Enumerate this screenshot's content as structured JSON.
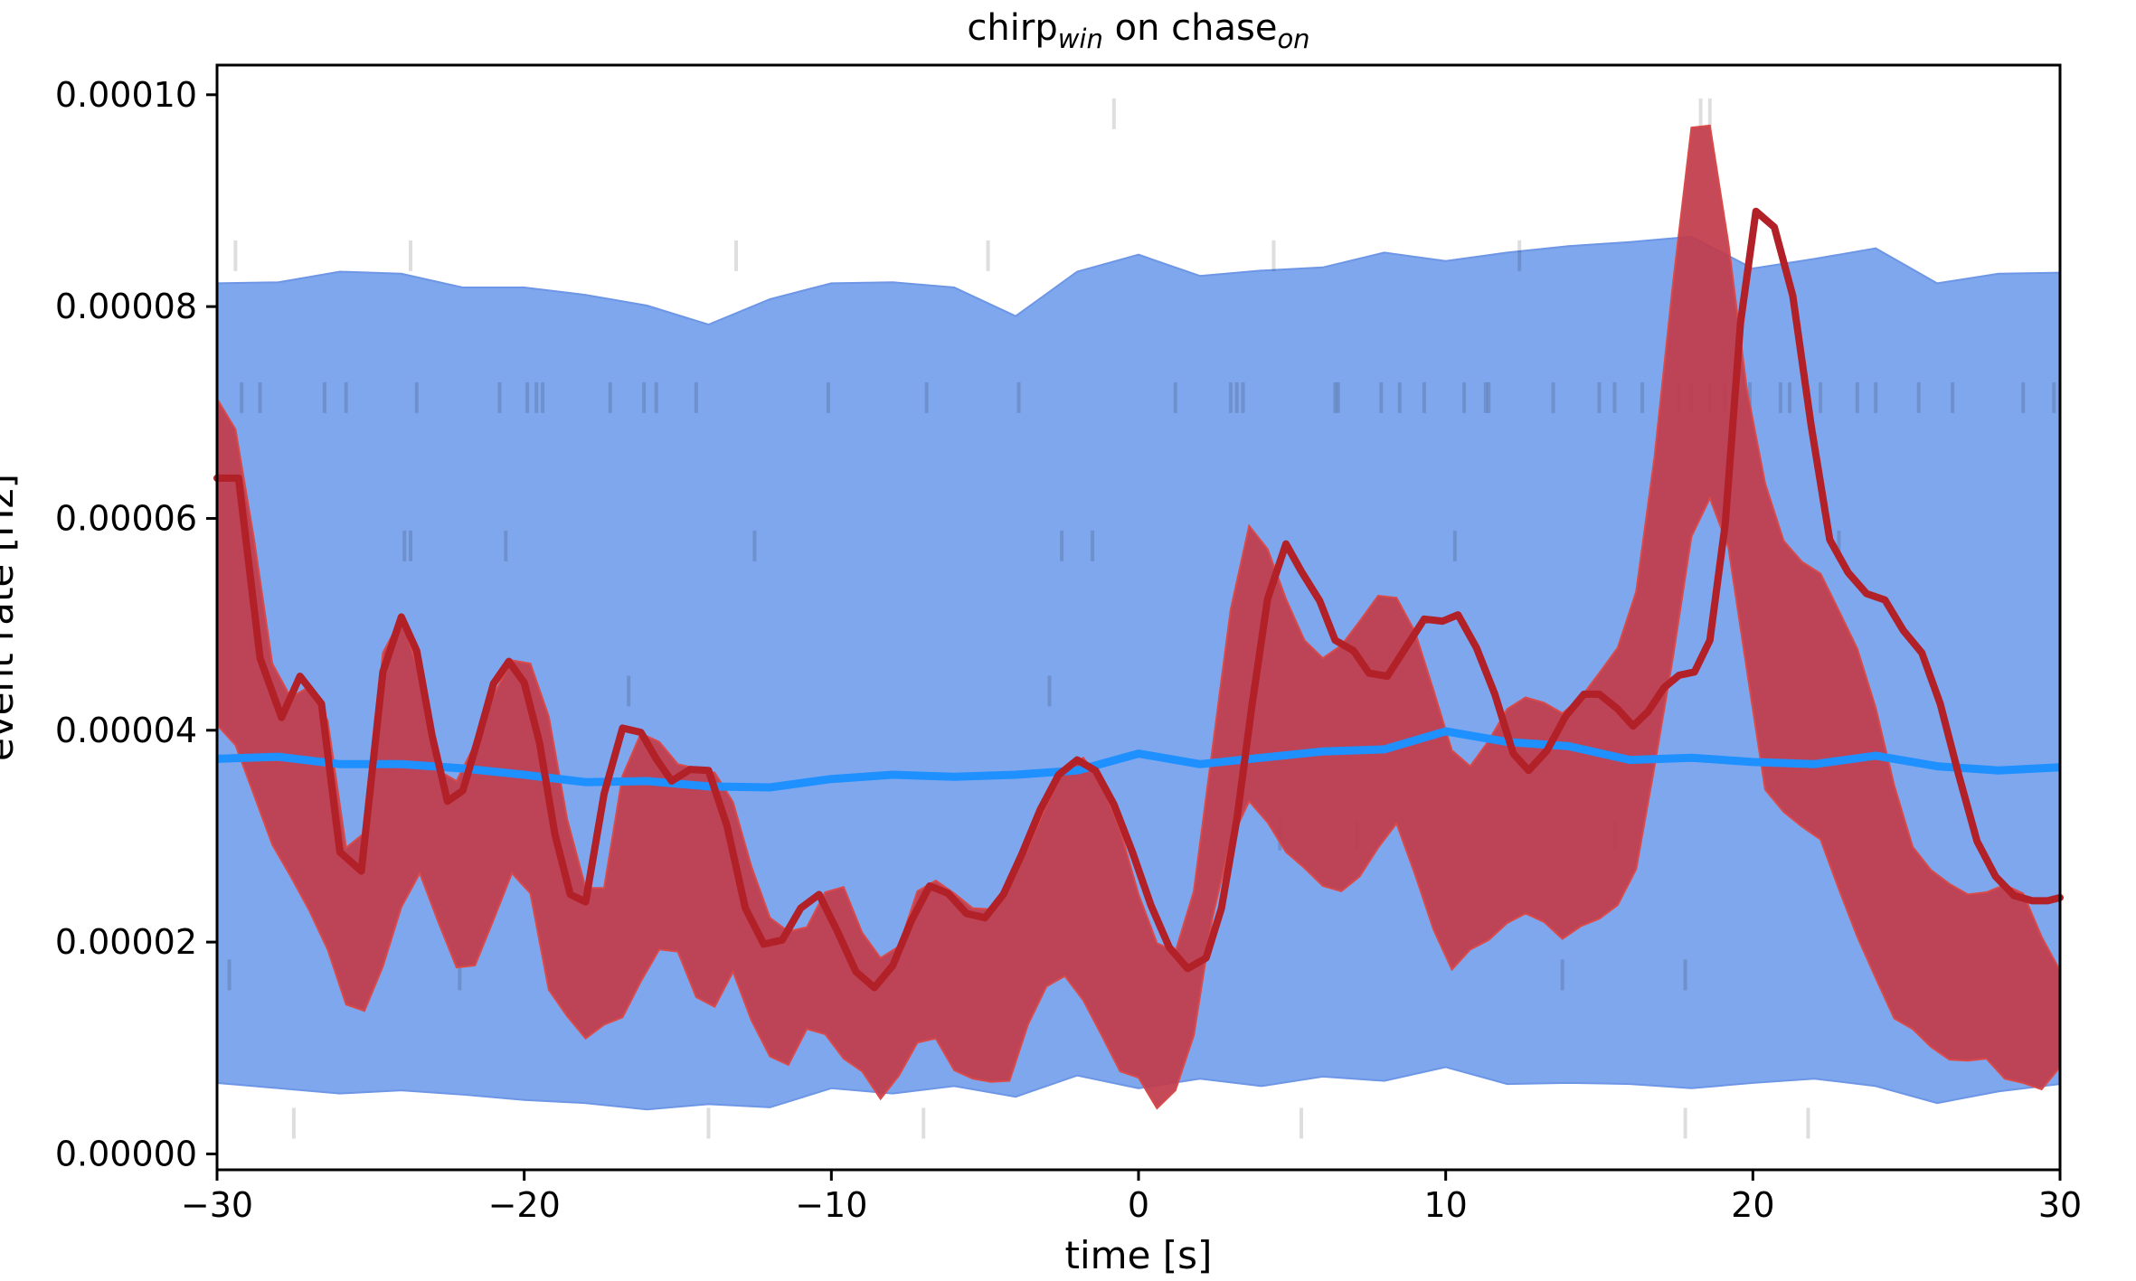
{
  "chart_data": {
    "type": "line",
    "title_main": "chirp",
    "title_sub1": "win",
    "title_mid": " on chase",
    "title_sub2": "on",
    "xlabel": "time [s]",
    "ylabel": "event rate [Hz]",
    "xlim": [
      -30,
      30
    ],
    "ylim": [
      -1.5e-06,
      0.0001028
    ],
    "x_ticks": [
      -30,
      -20,
      -10,
      0,
      10,
      20,
      30
    ],
    "x_tick_labels": [
      "−30",
      "−20",
      "−10",
      "0",
      "10",
      "20",
      "30"
    ],
    "y_ticks": [
      0,
      2e-05,
      4e-05,
      6e-05,
      8e-05,
      0.0001
    ],
    "y_tick_labels": [
      "0.00000",
      "0.00002",
      "0.00004",
      "0.00006",
      "0.00008",
      "0.00010"
    ],
    "grid": false,
    "colors": {
      "shuffled_band": "#7fa7ed",
      "shuffled_band_edge": "#6d96e6",
      "shuffled_median": "#1e90ff",
      "observed_band": "#c23b4b",
      "observed_band_edge": "#d94a4a",
      "observed_line": "#b22028",
      "event_ticks": "#000000"
    },
    "series": [
      {
        "role": "shuffled_median",
        "x": [
          -30,
          -28,
          -26,
          -24,
          -22,
          -20,
          -18,
          -16,
          -14,
          -12,
          -10,
          -8,
          -6,
          -4,
          -2,
          0,
          2,
          4,
          6,
          8,
          10,
          12,
          14,
          16,
          18,
          20,
          22,
          24,
          26,
          28,
          30
        ],
        "values": [
          3.73e-05,
          3.75e-05,
          3.68e-05,
          3.68e-05,
          3.64e-05,
          3.58e-05,
          3.51e-05,
          3.52e-05,
          3.47e-05,
          3.46e-05,
          3.54e-05,
          3.58e-05,
          3.56e-05,
          3.58e-05,
          3.62e-05,
          3.78e-05,
          3.68e-05,
          3.74e-05,
          3.8e-05,
          3.82e-05,
          3.99e-05,
          3.89e-05,
          3.85e-05,
          3.72e-05,
          3.74e-05,
          3.7e-05,
          3.68e-05,
          3.76e-05,
          3.66e-05,
          3.62e-05,
          3.65e-05
        ]
      },
      {
        "role": "shuffled_band",
        "x": [
          -30,
          -28,
          -26,
          -24,
          -22,
          -20,
          -18,
          -16,
          -14,
          -12,
          -10,
          -8,
          -6,
          -4,
          -2,
          0,
          2,
          4,
          6,
          8,
          10,
          12,
          14,
          16,
          18,
          20,
          22,
          24,
          26,
          28,
          30
        ],
        "lower": [
          6.7e-06,
          6.2e-06,
          5.7e-06,
          6e-06,
          5.6e-06,
          5.1e-06,
          4.8e-06,
          4.2e-06,
          4.7e-06,
          4.4e-06,
          6.2e-06,
          5.7e-06,
          6.4e-06,
          5.4e-06,
          7.4e-06,
          6.2e-06,
          7.1e-06,
          6.4e-06,
          7.3e-06,
          6.9e-06,
          8.2e-06,
          6.6e-06,
          6.7e-06,
          6.6e-06,
          6.2e-06,
          6.7e-06,
          7.1e-06,
          6.4e-06,
          4.8e-06,
          5.9e-06,
          6.6e-06
        ],
        "upper": [
          8.22e-05,
          8.23e-05,
          8.33e-05,
          8.31e-05,
          8.18e-05,
          8.18e-05,
          8.11e-05,
          8.01e-05,
          7.83e-05,
          8.07e-05,
          8.22e-05,
          8.23e-05,
          8.18e-05,
          7.91e-05,
          8.33e-05,
          8.49e-05,
          8.29e-05,
          8.34e-05,
          8.37e-05,
          8.51e-05,
          8.43e-05,
          8.51e-05,
          8.57e-05,
          8.61e-05,
          8.66e-05,
          8.36e-05,
          8.45e-05,
          8.55e-05,
          8.22e-05,
          8.31e-05,
          8.32e-05
        ]
      },
      {
        "role": "observed",
        "x": [
          -30,
          -29.3,
          -28.6,
          -27.9,
          -27.3,
          -26.6,
          -26,
          -25.3,
          -24.6,
          -24,
          -23.5,
          -23,
          -22.5,
          -22,
          -21.5,
          -21,
          -20.5,
          -20,
          -19.5,
          -19,
          -18.5,
          -18,
          -17.4,
          -16.8,
          -16.2,
          -15.7,
          -15.2,
          -14.6,
          -14,
          -13.4,
          -12.8,
          -12.2,
          -11.6,
          -11,
          -10.4,
          -9.8,
          -9.2,
          -8.6,
          -8,
          -7.4,
          -6.8,
          -6.2,
          -5.6,
          -5,
          -4.4,
          -3.8,
          -3.2,
          -2.6,
          -2,
          -1.4,
          -0.8,
          -0.2,
          0.4,
          1,
          1.6,
          2.2,
          2.7,
          3.2,
          3.7,
          4.2,
          4.8,
          5.3,
          5.9,
          6.4,
          7,
          7.5,
          8.1,
          8.7,
          9.3,
          9.9,
          10.4,
          11,
          11.6,
          12.2,
          12.7,
          13.3,
          13.9,
          14.5,
          15,
          15.6,
          16.1,
          16.6,
          17.1,
          17.6,
          18.1,
          18.6,
          19.1,
          19.6,
          20.1,
          20.7,
          21.3,
          21.9,
          22.5,
          23.1,
          23.7,
          24.3,
          24.9,
          25.5,
          26.1,
          26.7,
          27.3,
          27.9,
          28.5,
          29.1,
          29.6,
          30
        ],
        "values": [
          6.38e-05,
          6.38e-05,
          4.68e-05,
          4.12e-05,
          4.51e-05,
          4.25e-05,
          2.85e-05,
          2.67e-05,
          4.55e-05,
          5.07e-05,
          4.75e-05,
          3.95e-05,
          3.33e-05,
          3.43e-05,
          3.92e-05,
          4.44e-05,
          4.65e-05,
          4.45e-05,
          3.88e-05,
          3.02e-05,
          2.45e-05,
          2.38e-05,
          3.4e-05,
          4.02e-05,
          3.98e-05,
          3.73e-05,
          3.52e-05,
          3.63e-05,
          3.62e-05,
          3.1e-05,
          2.32e-05,
          1.98e-05,
          2.02e-05,
          2.32e-05,
          2.45e-05,
          2.1e-05,
          1.72e-05,
          1.57e-05,
          1.78e-05,
          2.2e-05,
          2.53e-05,
          2.46e-05,
          2.27e-05,
          2.23e-05,
          2.45e-05,
          2.83e-05,
          3.25e-05,
          3.58e-05,
          3.72e-05,
          3.62e-05,
          3.3e-05,
          2.85e-05,
          2.35e-05,
          1.95e-05,
          1.75e-05,
          1.85e-05,
          2.32e-05,
          3.16e-05,
          4.25e-05,
          5.24e-05,
          5.76e-05,
          5.5e-05,
          5.22e-05,
          4.85e-05,
          4.75e-05,
          4.54e-05,
          4.51e-05,
          4.78e-05,
          5.05e-05,
          5.03e-05,
          5.09e-05,
          4.78e-05,
          4.34e-05,
          3.78e-05,
          3.62e-05,
          3.81e-05,
          4.13e-05,
          4.34e-05,
          4.34e-05,
          4.2e-05,
          4.04e-05,
          4.18e-05,
          4.4e-05,
          4.52e-05,
          4.55e-05,
          4.85e-05,
          5.95e-05,
          7.85e-05,
          8.9e-05,
          8.75e-05,
          8.1e-05,
          6.87e-05,
          5.8e-05,
          5.49e-05,
          5.29e-05,
          5.23e-05,
          4.94e-05,
          4.73e-05,
          4.25e-05,
          3.58e-05,
          2.95e-05,
          2.62e-05,
          2.44e-05,
          2.39e-05,
          2.39e-05,
          2.42e-05
        ]
      },
      {
        "role": "observed_band",
        "x": [
          -30,
          -29.4,
          -28.8,
          -28.2,
          -27.6,
          -27,
          -26.4,
          -25.8,
          -25.2,
          -24.6,
          -24,
          -23.4,
          -22.8,
          -22.2,
          -21.6,
          -21,
          -20.4,
          -19.8,
          -19.2,
          -18.6,
          -18,
          -17.4,
          -16.8,
          -16.2,
          -15.6,
          -15,
          -14.4,
          -13.8,
          -13.2,
          -12.6,
          -12,
          -11.4,
          -10.8,
          -10.2,
          -9.6,
          -9,
          -8.4,
          -7.8,
          -7.2,
          -6.6,
          -6,
          -5.4,
          -4.8,
          -4.2,
          -3.6,
          -3,
          -2.4,
          -1.8,
          -1.2,
          -0.6,
          0,
          0.6,
          1.2,
          1.8,
          2.4,
          3,
          3.6,
          4.2,
          4.8,
          5.4,
          6,
          6.6,
          7.2,
          7.8,
          8.4,
          9,
          9.6,
          10.2,
          10.8,
          11.4,
          12,
          12.6,
          13.2,
          13.8,
          14.4,
          15,
          15.6,
          16.2,
          16.8,
          17.4,
          18,
          18.6,
          19.2,
          19.8,
          20.4,
          21,
          21.6,
          22.2,
          22.8,
          23.4,
          24,
          24.6,
          25.2,
          25.8,
          26.4,
          27,
          27.6,
          28.2,
          28.8,
          29.4,
          30
        ],
        "lower": [
          4.05e-05,
          3.86e-05,
          3.39e-05,
          2.92e-05,
          2.62e-05,
          2.3e-05,
          1.93e-05,
          1.41e-05,
          1.35e-05,
          1.77e-05,
          2.33e-05,
          2.65e-05,
          2.19e-05,
          1.76e-05,
          1.78e-05,
          2.21e-05,
          2.65e-05,
          2.46e-05,
          1.55e-05,
          1.3e-05,
          1.09e-05,
          1.22e-05,
          1.29e-05,
          1.63e-05,
          1.93e-05,
          1.91e-05,
          1.48e-05,
          1.39e-05,
          1.72e-05,
          1.26e-05,
          9.2e-06,
          8.4e-06,
          1.18e-05,
          1.13e-05,
          9e-06,
          7.8e-06,
          5.2e-06,
          7.4e-06,
          1.05e-05,
          1.09e-05,
          7.9e-06,
          7.1e-06,
          6.8e-06,
          6.9e-06,
          1.22e-05,
          1.58e-05,
          1.68e-05,
          1.45e-05,
          1.12e-05,
          7.8e-06,
          7.2e-06,
          4.3e-06,
          6e-06,
          1.12e-05,
          2.22e-05,
          2.96e-05,
          3.33e-05,
          3.13e-05,
          2.85e-05,
          2.7e-05,
          2.53e-05,
          2.48e-05,
          2.62e-05,
          2.89e-05,
          3.12e-05,
          2.64e-05,
          2.12e-05,
          1.74e-05,
          1.93e-05,
          2.02e-05,
          2.18e-05,
          2.27e-05,
          2.19e-05,
          2.03e-05,
          2.15e-05,
          2.22e-05,
          2.35e-05,
          2.69e-05,
          3.66e-05,
          4.69e-05,
          5.83e-05,
          6.19e-05,
          5.73e-05,
          4.58e-05,
          3.44e-05,
          3.23e-05,
          3.09e-05,
          2.97e-05,
          2.5e-05,
          2.05e-05,
          1.66e-05,
          1.28e-05,
          1.18e-05,
          1.01e-05,
          8.9e-06,
          8.8e-06,
          9e-06,
          7.1e-06,
          6.7e-06,
          6.1e-06,
          8.2e-06
        ],
        "upper": [
          7.13e-05,
          6.84e-05,
          5.81e-05,
          4.63e-05,
          4.31e-05,
          4.41e-05,
          4.09e-05,
          2.89e-05,
          3.03e-05,
          4.73e-05,
          5.06e-05,
          4.52e-05,
          3.62e-05,
          3.52e-05,
          3.87e-05,
          4.33e-05,
          4.66e-05,
          4.63e-05,
          4.13e-05,
          3.16e-05,
          2.51e-05,
          2.51e-05,
          3.57e-05,
          3.97e-05,
          3.89e-05,
          3.68e-05,
          3.64e-05,
          3.6e-05,
          3.32e-05,
          2.71e-05,
          2.23e-05,
          2.1e-05,
          2.14e-05,
          2.47e-05,
          2.52e-05,
          2.09e-05,
          1.85e-05,
          1.96e-05,
          2.48e-05,
          2.58e-05,
          2.46e-05,
          2.32e-05,
          2.31e-05,
          2.57e-05,
          2.89e-05,
          3.29e-05,
          3.64e-05,
          3.74e-05,
          3.51e-05,
          3.06e-05,
          2.45e-05,
          1.99e-05,
          1.91e-05,
          2.48e-05,
          3.81e-05,
          5.14e-05,
          5.93e-05,
          5.71e-05,
          5.24e-05,
          4.85e-05,
          4.68e-05,
          4.8e-05,
          5.03e-05,
          5.27e-05,
          5.25e-05,
          4.93e-05,
          4.38e-05,
          3.81e-05,
          3.66e-05,
          3.9e-05,
          4.2e-05,
          4.31e-05,
          4.26e-05,
          4.16e-05,
          4.31e-05,
          4.54e-05,
          4.78e-05,
          5.31e-05,
          6.58e-05,
          8.22e-05,
          9.69e-05,
          9.71e-05,
          8.6e-05,
          7.23e-05,
          6.33e-05,
          5.79e-05,
          5.59e-05,
          5.48e-05,
          5.13e-05,
          4.77e-05,
          4.21e-05,
          3.48e-05,
          2.9e-05,
          2.68e-05,
          2.55e-05,
          2.45e-05,
          2.47e-05,
          2.54e-05,
          2.46e-05,
          2.05e-05,
          1.73e-05
        ]
      }
    ],
    "event_ticks": [
      {
        "y": 9.82e-05,
        "x": [
          -0.8,
          18.3,
          18.6
        ]
      },
      {
        "y": 8.48e-05,
        "x": [
          -29.4,
          -23.7,
          -13.1,
          -4.9,
          4.4,
          12.4
        ]
      },
      {
        "y": 7.14e-05,
        "x": [
          -29.2,
          -28.6,
          -26.5,
          -25.8,
          -23.5,
          -20.8,
          -19.9,
          -19.6,
          -19.4,
          -17.2,
          -16.1,
          -15.7,
          -14.4,
          -10.1,
          -6.9,
          -3.9,
          1.2,
          3.0,
          3.2,
          3.4,
          6.4,
          6.5,
          7.9,
          8.5,
          9.3,
          10.6,
          11.3,
          11.4,
          13.5,
          15.0,
          15.5,
          16.4,
          17.6,
          18.0,
          18.6,
          19.1,
          19.9,
          20.9,
          21.2,
          22.2,
          23.4,
          24.0,
          25.4,
          26.5,
          28.8,
          29.8
        ]
      },
      {
        "y": 5.74e-05,
        "x": [
          -23.9,
          -23.7,
          -20.6,
          -12.5,
          -2.5,
          -1.5,
          10.3,
          22.8
        ]
      },
      {
        "y": 4.37e-05,
        "x": [
          -16.6,
          -2.9
        ]
      },
      {
        "y": 3.01e-05,
        "x": [
          4.6,
          7.1,
          15.5
        ]
      },
      {
        "y": 1.69e-05,
        "x": [
          -29.6,
          -22.1,
          13.8,
          17.8
        ]
      },
      {
        "y": 2.9e-06,
        "x": [
          -27.5,
          -14.0,
          -7.0,
          5.3,
          17.8,
          21.8
        ]
      }
    ]
  }
}
